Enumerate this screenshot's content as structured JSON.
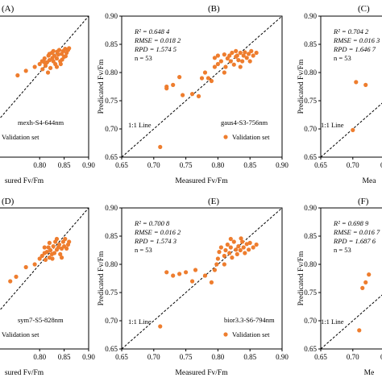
{
  "colors": {
    "point": "#ee7d2e",
    "axis": "#000000",
    "background": "#ffffff"
  },
  "chart_data": [
    {
      "type": "scatter",
      "panel": "A",
      "letter": "(A)",
      "xlabel": "sured Fv/Fm",
      "ylabel": "",
      "xlim": [
        0.65,
        0.9
      ],
      "ylim": [
        0.65,
        0.9
      ],
      "xticks": [
        "0.80",
        "0.85",
        "0.90"
      ],
      "yticks": [],
      "stats": [],
      "model_label": "mexh-S4-644nm",
      "refline_label": "",
      "legend": "Validation set",
      "series": [
        {
          "name": "Validation set",
          "points": [
            [
              0.7,
              0.757
            ],
            [
              0.755,
              0.795
            ],
            [
              0.772,
              0.803
            ],
            [
              0.79,
              0.81
            ],
            [
              0.8,
              0.815
            ],
            [
              0.805,
              0.82
            ],
            [
              0.81,
              0.825
            ],
            [
              0.812,
              0.812
            ],
            [
              0.815,
              0.818
            ],
            [
              0.818,
              0.83
            ],
            [
              0.82,
              0.822
            ],
            [
              0.822,
              0.808
            ],
            [
              0.825,
              0.835
            ],
            [
              0.828,
              0.82
            ],
            [
              0.83,
              0.83
            ],
            [
              0.832,
              0.815
            ],
            [
              0.835,
              0.825
            ],
            [
              0.838,
              0.832
            ],
            [
              0.84,
              0.84
            ],
            [
              0.842,
              0.82
            ],
            [
              0.845,
              0.833
            ],
            [
              0.848,
              0.838
            ],
            [
              0.85,
              0.828
            ],
            [
              0.852,
              0.842
            ],
            [
              0.855,
              0.835
            ],
            [
              0.858,
              0.84
            ],
            [
              0.86,
              0.843
            ],
            [
              0.835,
              0.81
            ],
            [
              0.828,
              0.838
            ],
            [
              0.843,
              0.815
            ],
            [
              0.82,
              0.833
            ],
            [
              0.81,
              0.818
            ],
            [
              0.826,
              0.826
            ],
            [
              0.836,
              0.837
            ],
            [
              0.853,
              0.829
            ],
            [
              0.846,
              0.823
            ],
            [
              0.817,
              0.8
            ],
            [
              0.806,
              0.806
            ]
          ]
        }
      ]
    },
    {
      "type": "scatter",
      "panel": "B",
      "letter": "(B)",
      "xlabel": "Measured Fv/Fm",
      "ylabel": "Predicated Fv/Fm",
      "xlim": [
        0.65,
        0.9
      ],
      "ylim": [
        0.65,
        0.9
      ],
      "xticks": [
        "0.65",
        "0.70",
        "0.75",
        "0.80",
        "0.85",
        "0.90"
      ],
      "yticks": [
        "0.65",
        "0.70",
        "0.75",
        "0.80",
        "0.85",
        "0.90"
      ],
      "stats": [
        "R² = 0.648 4",
        "RMSE = 0.018 2",
        "RPD = 1.574 5",
        "n = 53"
      ],
      "model_label": "gaus4-S3-756nm",
      "refline_label": "1:1 Line",
      "legend": "Validation set",
      "series": [
        {
          "name": "Validation set",
          "points": [
            [
              0.71,
              0.668
            ],
            [
              0.72,
              0.772
            ],
            [
              0.72,
              0.775
            ],
            [
              0.73,
              0.778
            ],
            [
              0.74,
              0.792
            ],
            [
              0.745,
              0.76
            ],
            [
              0.76,
              0.762
            ],
            [
              0.77,
              0.758
            ],
            [
              0.775,
              0.79
            ],
            [
              0.78,
              0.8
            ],
            [
              0.785,
              0.79
            ],
            [
              0.79,
              0.785
            ],
            [
              0.795,
              0.81
            ],
            [
              0.795,
              0.826
            ],
            [
              0.8,
              0.83
            ],
            [
              0.8,
              0.815
            ],
            [
              0.805,
              0.82
            ],
            [
              0.81,
              0.832
            ],
            [
              0.812,
              0.81
            ],
            [
              0.815,
              0.825
            ],
            [
              0.818,
              0.83
            ],
            [
              0.82,
              0.82
            ],
            [
              0.822,
              0.835
            ],
            [
              0.825,
              0.814
            ],
            [
              0.828,
              0.828
            ],
            [
              0.83,
              0.83
            ],
            [
              0.832,
              0.822
            ],
            [
              0.835,
              0.835
            ],
            [
              0.838,
              0.82
            ],
            [
              0.84,
              0.83
            ],
            [
              0.842,
              0.836
            ],
            [
              0.845,
              0.826
            ],
            [
              0.848,
              0.833
            ],
            [
              0.85,
              0.82
            ],
            [
              0.852,
              0.838
            ],
            [
              0.855,
              0.83
            ],
            [
              0.86,
              0.835
            ],
            [
              0.835,
              0.81
            ],
            [
              0.81,
              0.8
            ],
            [
              0.828,
              0.838
            ]
          ]
        }
      ]
    },
    {
      "type": "scatter",
      "panel": "C",
      "letter": "(C)",
      "xlabel": "Mea",
      "ylabel": "Predicated Fv/Fm",
      "xlim": [
        0.65,
        0.9
      ],
      "ylim": [
        0.65,
        0.9
      ],
      "xticks": [
        "0.65",
        "0.70",
        "0.7"
      ],
      "yticks": [
        "0.65",
        "0.70",
        "0.75",
        "0.80",
        "0.85",
        "0.90"
      ],
      "stats": [
        "R² = 0.704 2",
        "RMSE = 0.016 3",
        "RPD = 1.646 7",
        "n = 53"
      ],
      "model_label": "",
      "refline_label": "1:1 Line",
      "legend": "",
      "series": [
        {
          "name": "",
          "points": [
            [
              0.7,
              0.698
            ],
            [
              0.705,
              0.783
            ],
            [
              0.72,
              0.778
            ]
          ]
        }
      ]
    },
    {
      "type": "scatter",
      "panel": "D",
      "letter": "(D)",
      "xlabel": "sured Fv/Fm",
      "ylabel": "",
      "xlim": [
        0.65,
        0.9
      ],
      "ylim": [
        0.65,
        0.9
      ],
      "xticks": [
        "0.80",
        "0.85",
        "0.90"
      ],
      "yticks": [],
      "stats": [],
      "model_label": "sym7-S5-828nm",
      "refline_label": "",
      "legend": "Validation set",
      "series": [
        {
          "name": "Validation set",
          "points": [
            [
              0.74,
              0.77
            ],
            [
              0.752,
              0.778
            ],
            [
              0.772,
              0.795
            ],
            [
              0.79,
              0.8
            ],
            [
              0.8,
              0.81
            ],
            [
              0.805,
              0.815
            ],
            [
              0.81,
              0.82
            ],
            [
              0.812,
              0.808
            ],
            [
              0.815,
              0.822
            ],
            [
              0.818,
              0.83
            ],
            [
              0.82,
              0.812
            ],
            [
              0.822,
              0.825
            ],
            [
              0.825,
              0.818
            ],
            [
              0.828,
              0.832
            ],
            [
              0.83,
              0.82
            ],
            [
              0.832,
              0.84
            ],
            [
              0.835,
              0.826
            ],
            [
              0.838,
              0.83
            ],
            [
              0.84,
              0.835
            ],
            [
              0.842,
              0.818
            ],
            [
              0.845,
              0.828
            ],
            [
              0.848,
              0.84
            ],
            [
              0.85,
              0.832
            ],
            [
              0.852,
              0.845
            ],
            [
              0.855,
              0.828
            ],
            [
              0.858,
              0.835
            ],
            [
              0.86,
              0.84
            ],
            [
              0.835,
              0.845
            ],
            [
              0.826,
              0.81
            ],
            [
              0.845,
              0.812
            ],
            [
              0.82,
              0.838
            ],
            [
              0.81,
              0.83
            ]
          ]
        }
      ]
    },
    {
      "type": "scatter",
      "panel": "E",
      "letter": "(E)",
      "xlabel": "Measured Fv/Fm",
      "ylabel": "Predicated Fv/Fm",
      "xlim": [
        0.65,
        0.9
      ],
      "ylim": [
        0.65,
        0.9
      ],
      "xticks": [
        "0.65",
        "0.70",
        "0.75",
        "0.80",
        "0.85",
        "0.90"
      ],
      "yticks": [
        "0.65",
        "0.70",
        "0.75",
        "0.80",
        "0.85",
        "0.90"
      ],
      "stats": [
        "R² = 0.700 8",
        "RMSE = 0.016 2",
        "RPD = 1.574 3",
        "n = 53"
      ],
      "model_label": "bior3.3-S6-794nm",
      "refline_label": "1:1 Line",
      "legend": "Validation set",
      "series": [
        {
          "name": "Validation set",
          "points": [
            [
              0.71,
              0.69
            ],
            [
              0.72,
              0.786
            ],
            [
              0.73,
              0.78
            ],
            [
              0.74,
              0.783
            ],
            [
              0.75,
              0.786
            ],
            [
              0.76,
              0.77
            ],
            [
              0.765,
              0.79
            ],
            [
              0.78,
              0.78
            ],
            [
              0.79,
              0.768
            ],
            [
              0.795,
              0.79
            ],
            [
              0.8,
              0.81
            ],
            [
              0.802,
              0.822
            ],
            [
              0.805,
              0.83
            ],
            [
              0.81,
              0.815
            ],
            [
              0.812,
              0.825
            ],
            [
              0.815,
              0.835
            ],
            [
              0.818,
              0.82
            ],
            [
              0.82,
              0.83
            ],
            [
              0.822,
              0.812
            ],
            [
              0.825,
              0.84
            ],
            [
              0.828,
              0.826
            ],
            [
              0.83,
              0.818
            ],
            [
              0.832,
              0.832
            ],
            [
              0.835,
              0.825
            ],
            [
              0.838,
              0.84
            ],
            [
              0.84,
              0.83
            ],
            [
              0.842,
              0.82
            ],
            [
              0.845,
              0.836
            ],
            [
              0.848,
              0.826
            ],
            [
              0.85,
              0.838
            ],
            [
              0.855,
              0.83
            ],
            [
              0.86,
              0.835
            ],
            [
              0.836,
              0.846
            ],
            [
              0.82,
              0.845
            ],
            [
              0.81,
              0.8
            ],
            [
              0.798,
              0.8
            ]
          ]
        }
      ]
    },
    {
      "type": "scatter",
      "panel": "F",
      "letter": "(F)",
      "xlabel": "Me",
      "ylabel": "Predicated Fv/Fm",
      "xlim": [
        0.65,
        0.9
      ],
      "ylim": [
        0.65,
        0.9
      ],
      "xticks": [
        "0.65",
        "0.70",
        "0.7"
      ],
      "yticks": [
        "0.65",
        "0.70",
        "0.75",
        "0.80",
        "0.85",
        "0.90"
      ],
      "stats": [
        "R² = 0.698 9",
        "RMSE = 0.016 7",
        "RPD = 1.687 6",
        "n = 53"
      ],
      "model_label": "",
      "refline_label": "1:1 Line",
      "legend": "",
      "series": [
        {
          "name": "",
          "points": [
            [
              0.71,
              0.683
            ],
            [
              0.715,
              0.758
            ],
            [
              0.72,
              0.768
            ],
            [
              0.725,
              0.782
            ]
          ]
        }
      ]
    }
  ]
}
